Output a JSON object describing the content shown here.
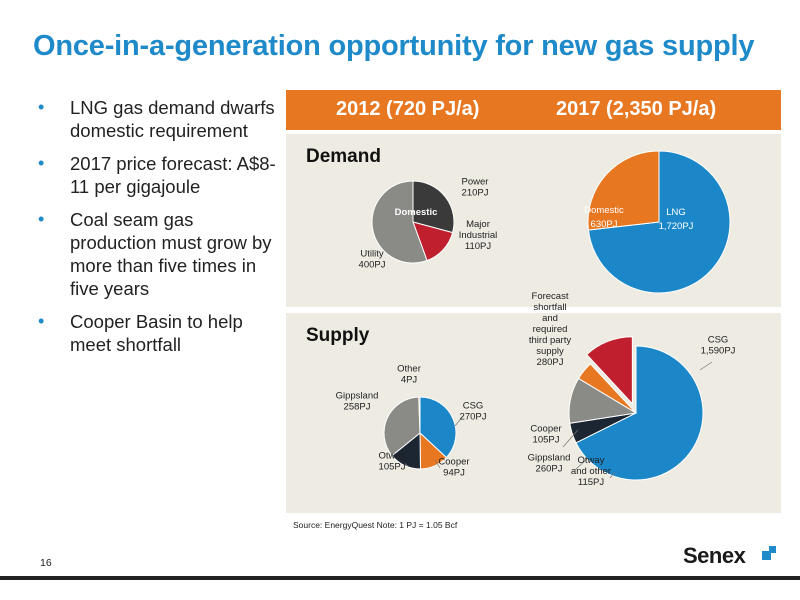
{
  "title": "Once-in-a-generation opportunity for new gas supply",
  "bullets": [
    "LNG gas demand dwarfs domestic requirement",
    "2017 price forecast: A$8-11 per gigajoule",
    "Coal seam gas production must grow by more than five times in five years",
    "Cooper Basin to help meet shortfall"
  ],
  "columns": {
    "left": "2012 (720 PJ/a)",
    "right": "2017 (2,350 PJ/a)"
  },
  "rows": {
    "demand": "Demand",
    "supply": "Supply"
  },
  "source": "Source: EnergyQuest   Note: 1 PJ = 1.05 Bcf",
  "page_number": "16",
  "logo": "Senex",
  "colors": {
    "accent": "#1f8ac9",
    "orange": "#e87722",
    "panel": "#eeebe2",
    "dark": "#3a3a3a",
    "red": "#c0202e",
    "grey": "#8a8a86",
    "navy": "#1c2632",
    "blue": "#1b87c9"
  },
  "chart_data": [
    {
      "type": "pie",
      "panel": "Demand",
      "column": "2012",
      "center_label": "Domestic",
      "slices": [
        {
          "label": [
            "Power",
            "210PJ"
          ],
          "value": 210,
          "color": "#3a3a3a"
        },
        {
          "label": [
            "Major",
            "Industrial",
            "110PJ"
          ],
          "value": 110,
          "color": "#c0202e"
        },
        {
          "label": [
            "Utility",
            "400PJ"
          ],
          "value": 400,
          "color": "#8a8a86"
        }
      ]
    },
    {
      "type": "pie",
      "panel": "Demand",
      "column": "2017",
      "slices": [
        {
          "label": [
            "LNG",
            "1,720PJ"
          ],
          "value": 1720,
          "color": "#1b87c9"
        },
        {
          "label": [
            "Domestic",
            "630PJ"
          ],
          "value": 630,
          "color": "#e87722"
        }
      ]
    },
    {
      "type": "pie",
      "panel": "Supply",
      "column": "2012",
      "slices": [
        {
          "label": [
            "CSG",
            "270PJ"
          ],
          "value": 270,
          "color": "#1b87c9"
        },
        {
          "label": [
            "Cooper",
            "94PJ"
          ],
          "value": 94,
          "color": "#e87722"
        },
        {
          "label": [
            "Otway",
            "105PJ"
          ],
          "value": 105,
          "color": "#1c2632"
        },
        {
          "label": [
            "Gippsland",
            "258PJ"
          ],
          "value": 258,
          "color": "#8a8a86"
        },
        {
          "label": [
            "Other",
            "4PJ"
          ],
          "value": 4,
          "color": "#c0202e"
        }
      ]
    },
    {
      "type": "pie",
      "panel": "Supply",
      "column": "2017",
      "slices": [
        {
          "label": [
            "CSG",
            "1,590PJ"
          ],
          "value": 1590,
          "color": "#1b87c9"
        },
        {
          "label": [
            "Otway",
            "and other",
            "115PJ"
          ],
          "value": 115,
          "color": "#1c2632"
        },
        {
          "label": [
            "Gippsland",
            "260PJ"
          ],
          "value": 260,
          "color": "#8a8a86"
        },
        {
          "label": [
            "Cooper",
            "105PJ"
          ],
          "value": 105,
          "color": "#e87722"
        },
        {
          "label": [
            "Forecast",
            "shortfall",
            "and",
            "required",
            "third party",
            "supply",
            "280PJ"
          ],
          "value": 280,
          "color": "#c0202e",
          "exploded": true
        }
      ]
    }
  ]
}
